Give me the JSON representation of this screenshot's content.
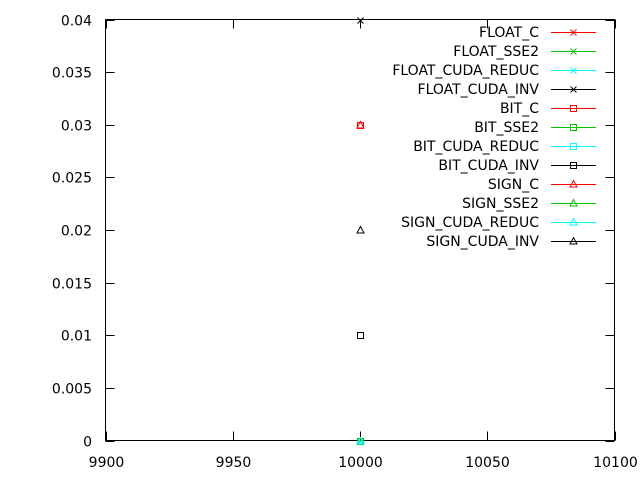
{
  "chart_data": {
    "type": "scatter",
    "title": "",
    "xlabel": "",
    "ylabel": "",
    "xlim": [
      9900,
      10100
    ],
    "ylim": [
      0,
      0.04
    ],
    "x_ticks": [
      9900,
      9950,
      10000,
      10050,
      10100
    ],
    "x_tick_labels": [
      "9900",
      "9950",
      "10000",
      "10050",
      "10100"
    ],
    "y_ticks": [
      0,
      0.005,
      0.01,
      0.015,
      0.02,
      0.025,
      0.03,
      0.035,
      0.04
    ],
    "y_tick_labels": [
      "0",
      "0.005",
      "0.01",
      "0.015",
      "0.02",
      "0.025",
      "0.03",
      "0.035",
      "0.04"
    ],
    "grid": false,
    "legend_position": "top-right",
    "series": [
      {
        "name": "FLOAT_C",
        "color": "#ff0000",
        "marker": "x",
        "points": [
          [
            10000,
            0.0
          ]
        ]
      },
      {
        "name": "FLOAT_SSE2",
        "color": "#00c000",
        "marker": "x",
        "points": [
          [
            10000,
            0.0
          ]
        ]
      },
      {
        "name": "FLOAT_CUDA_REDUC",
        "color": "#00ffff",
        "marker": "x",
        "points": [
          [
            10000,
            0.0
          ]
        ]
      },
      {
        "name": "FLOAT_CUDA_INV",
        "color": "#000000",
        "marker": "x",
        "points": [
          [
            10000,
            0.04
          ]
        ]
      },
      {
        "name": "BIT_C",
        "color": "#ff0000",
        "marker": "square",
        "points": [
          [
            10000,
            0.03
          ]
        ]
      },
      {
        "name": "BIT_SSE2",
        "color": "#00c000",
        "marker": "square",
        "points": [
          [
            10000,
            0.0
          ]
        ]
      },
      {
        "name": "BIT_CUDA_REDUC",
        "color": "#00ffff",
        "marker": "square",
        "points": [
          [
            10000,
            0.01
          ]
        ]
      },
      {
        "name": "BIT_CUDA_INV",
        "color": "#000000",
        "marker": "square",
        "points": [
          [
            10000,
            0.01
          ]
        ]
      },
      {
        "name": "SIGN_C",
        "color": "#ff0000",
        "marker": "triangle",
        "points": [
          [
            10000,
            0.03
          ]
        ]
      },
      {
        "name": "SIGN_SSE2",
        "color": "#00c000",
        "marker": "triangle",
        "points": [
          [
            10000,
            0.0
          ]
        ]
      },
      {
        "name": "SIGN_CUDA_REDUC",
        "color": "#00ffff",
        "marker": "triangle",
        "points": [
          [
            10000,
            0.0
          ]
        ]
      },
      {
        "name": "SIGN_CUDA_INV",
        "color": "#000000",
        "marker": "triangle",
        "points": [
          [
            10000,
            0.02
          ]
        ]
      }
    ]
  }
}
